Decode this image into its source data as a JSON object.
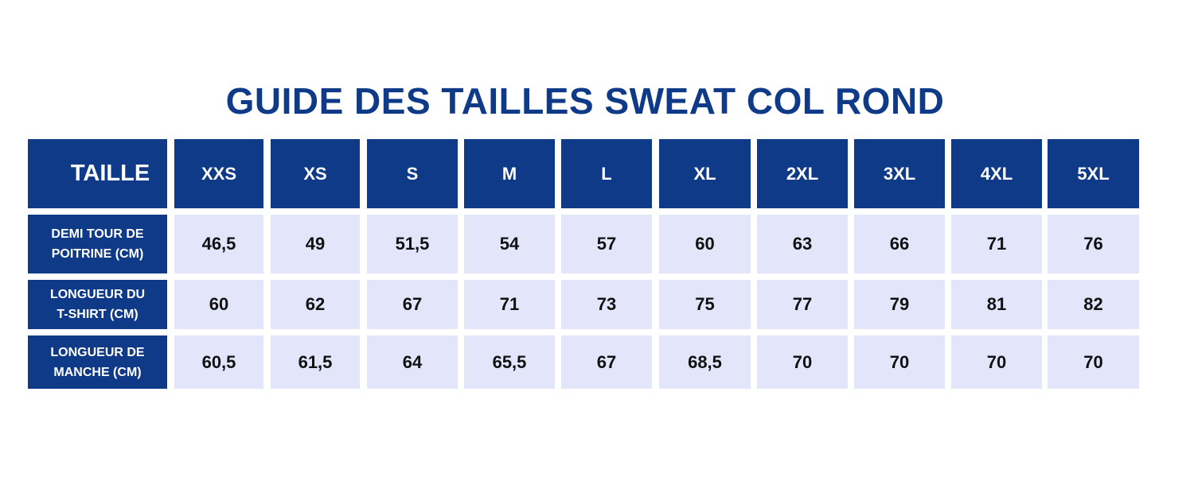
{
  "header": {
    "title": "GUIDE DES TAILLES SWEAT COL ROND"
  },
  "table": {
    "columns": [
      "TAILLE",
      "XXS",
      "XS",
      "S",
      "M",
      "L",
      "XL",
      "2XL",
      "3XL",
      "4XL",
      "5XL"
    ],
    "rows": [
      {
        "label": [
          "DEMI TOUR DE",
          "POITRINE (CM)"
        ],
        "cells": [
          "46,5",
          "49",
          "51,5",
          "54",
          "57",
          "60",
          "63",
          "66",
          "71",
          "76"
        ]
      },
      {
        "label": [
          "LONGUEUR DU",
          "T-SHIRT (CM)"
        ],
        "cells": [
          "60",
          "62",
          "67",
          "71",
          "73",
          "75",
          "77",
          "79",
          "81",
          "82"
        ]
      },
      {
        "label": [
          "LONGUEUR DE",
          "MANCHE (CM)"
        ],
        "cells": [
          "60,5",
          "61,5",
          "64",
          "65,5",
          "67",
          "68,5",
          "70",
          "70",
          "70",
          "70"
        ]
      }
    ]
  }
}
